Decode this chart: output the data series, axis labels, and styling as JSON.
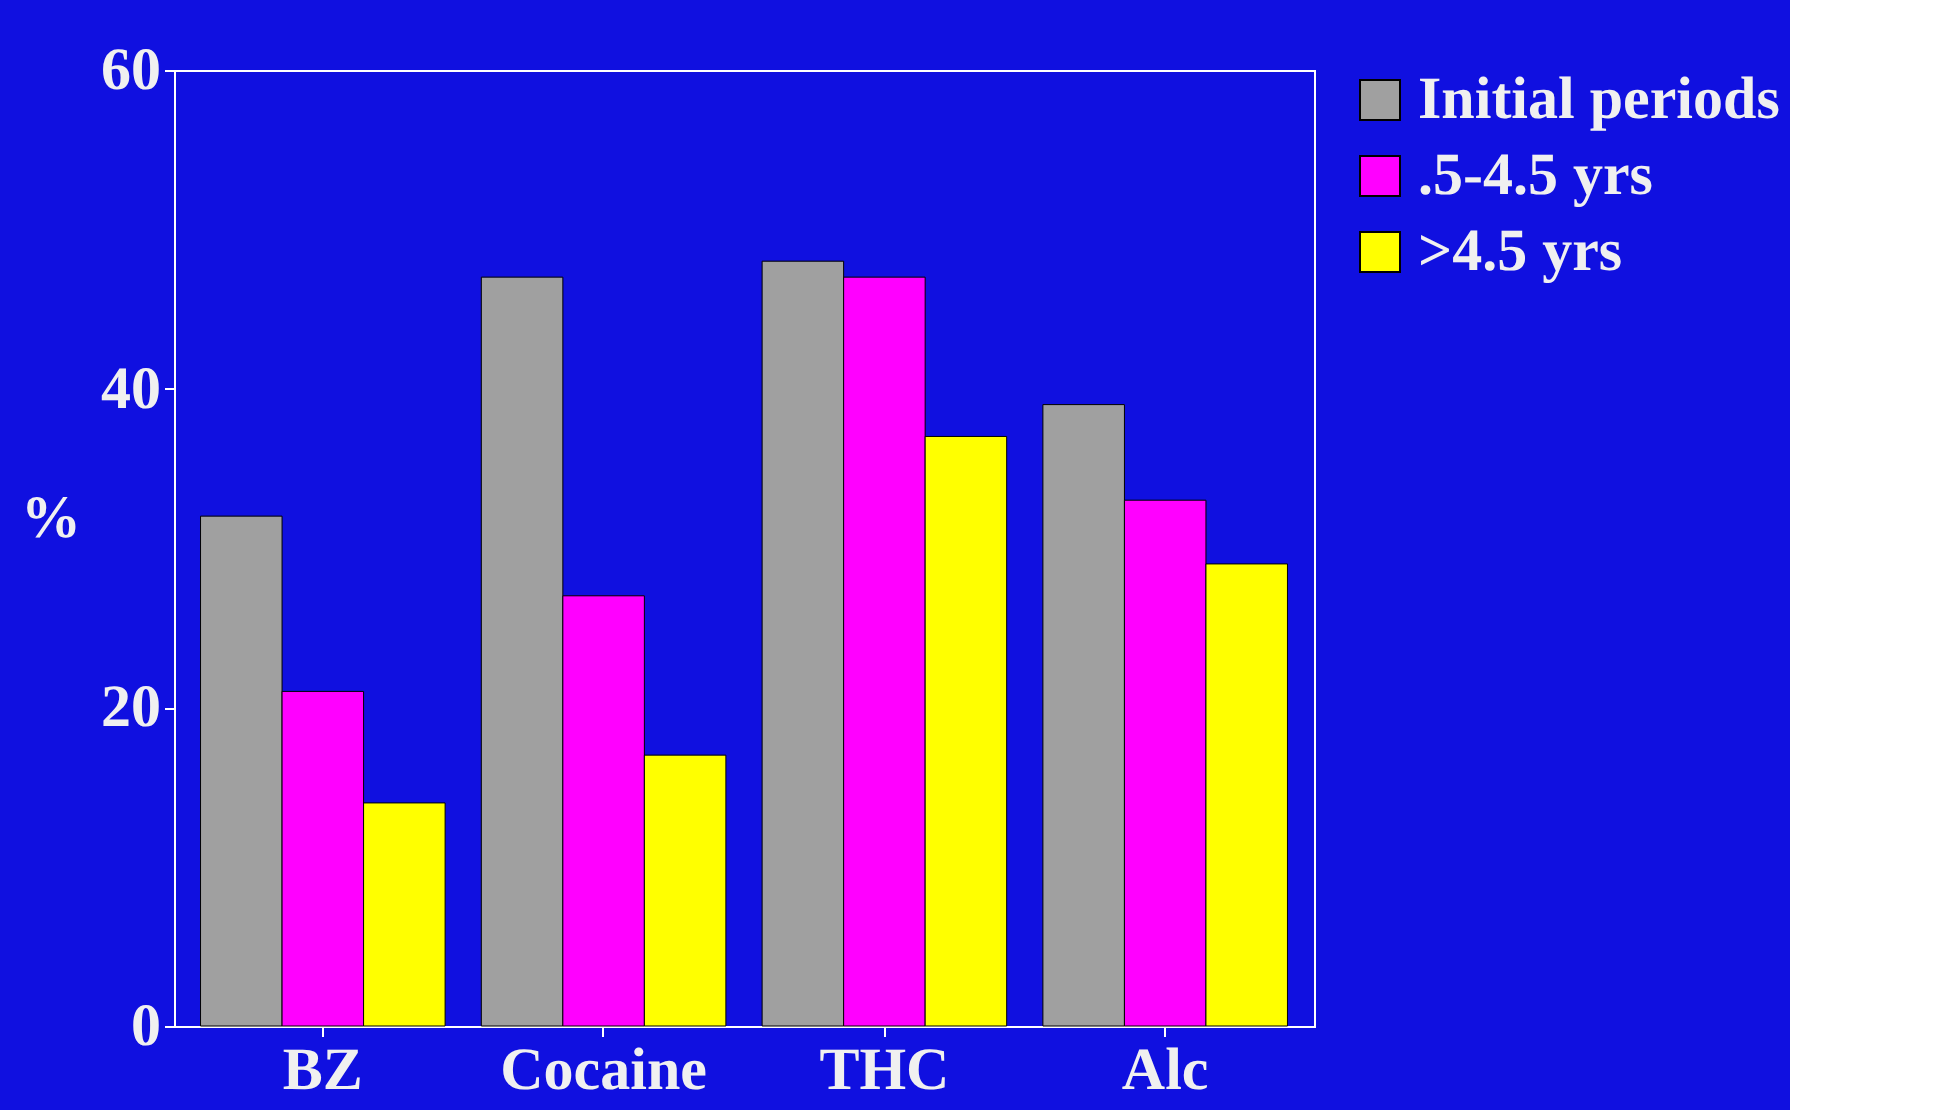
{
  "chart_data": {
    "type": "bar",
    "ylabel": "%",
    "categories": [
      "BZ",
      "Cocaine",
      "THC",
      "Alc"
    ],
    "series": [
      {
        "name": "Initial periods",
        "color": "#a0a0a0",
        "values": [
          32,
          47,
          48,
          39
        ]
      },
      {
        "name": ".5-4.5 yrs",
        "color": "#ff00ff",
        "values": [
          21,
          27,
          47,
          33
        ]
      },
      {
        "name": ">4.5 yrs",
        "color": "#ffff00",
        "values": [
          14,
          17,
          37,
          29
        ]
      }
    ],
    "ylim": [
      0,
      60
    ],
    "yticks": [
      0,
      20,
      40,
      60
    ],
    "grid": false,
    "legend": "top right"
  }
}
